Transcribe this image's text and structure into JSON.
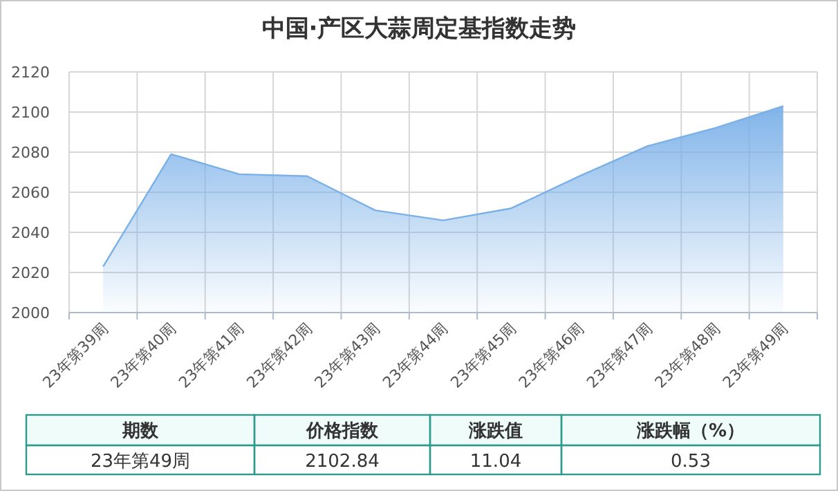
{
  "chart_data": {
    "type": "area",
    "title": "中国·产区大蒜周定基指数走势",
    "categories": [
      "23年第39周",
      "23年第40周",
      "23年第41周",
      "23年第42周",
      "23年第43周",
      "23年第44周",
      "23年第45周",
      "23年第46周",
      "23年第47周",
      "23年第48周",
      "23年第49周"
    ],
    "values": [
      2023,
      2079,
      2069,
      2068,
      2051,
      2046,
      2052,
      2068,
      2083,
      2092,
      2103
    ],
    "color": "#7ab0e8",
    "ylim": [
      2000,
      2120
    ],
    "yticks": [
      2000,
      2020,
      2040,
      2060,
      2080,
      2100,
      2120
    ],
    "grid": true,
    "annotations": [
      "期数",
      "价格指数",
      "涨跌值",
      "涨跌幅（%）",
      "23年第49周",
      "2102.84",
      "11.04",
      "0.53"
    ]
  }
}
